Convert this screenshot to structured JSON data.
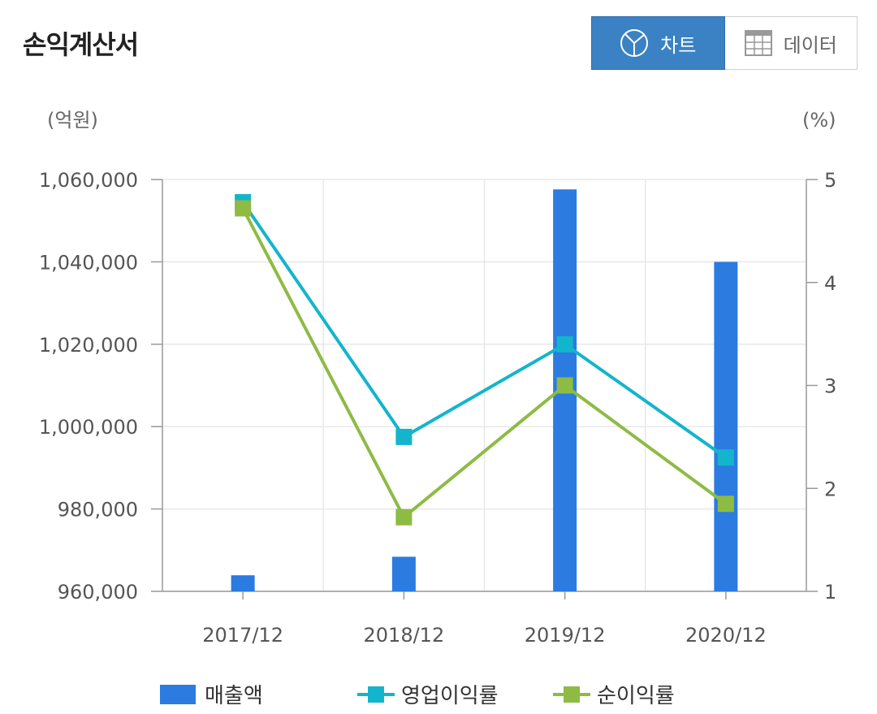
{
  "header": {
    "title": "손익계산서"
  },
  "toggle": {
    "chart_label": "차트",
    "data_label": "데이터",
    "chart_icon": "pie-chart-icon",
    "data_icon": "table-grid-icon",
    "active": "chart"
  },
  "colors": {
    "bar": "#2b7be0",
    "op_margin": "#13b5cc",
    "net_margin": "#8dbb44",
    "active_button": "#3a82c4"
  },
  "chart_data": {
    "type": "bar",
    "categories": [
      "2017/12",
      "2018/12",
      "2019/12",
      "2020/12"
    ],
    "y_left": {
      "unit_label": "(억원)",
      "min": 960000,
      "max": 1060000,
      "ticks": [
        960000,
        980000,
        1000000,
        1020000,
        1040000,
        1060000
      ]
    },
    "y_right": {
      "unit_label": "(%)",
      "min": 1,
      "max": 5,
      "ticks": [
        1,
        2,
        3,
        4,
        5
      ]
    },
    "grid": true,
    "legend_position": "bottom",
    "series": [
      {
        "name": "매출액",
        "type": "bar",
        "axis": "left",
        "values": [
          963900,
          968400,
          1057600,
          1040000
        ]
      },
      {
        "name": "영업이익률",
        "type": "line",
        "axis": "right",
        "values": [
          4.78,
          2.5,
          3.4,
          2.3
        ]
      },
      {
        "name": "순이익률",
        "type": "line",
        "axis": "right",
        "values": [
          4.72,
          1.72,
          3.0,
          1.85
        ]
      }
    ]
  }
}
